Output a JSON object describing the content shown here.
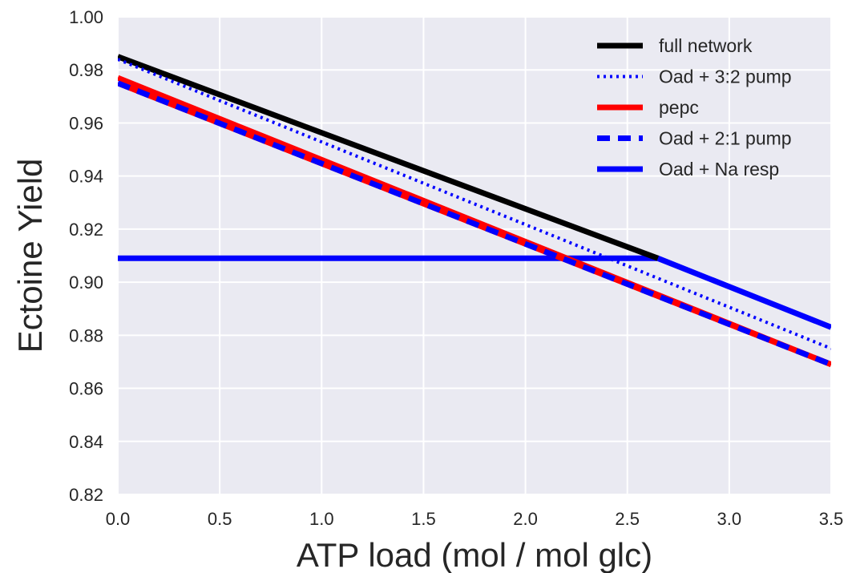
{
  "chart_data": {
    "type": "line",
    "title": "",
    "xlabel": "ATP load (mol / mol glc)",
    "ylabel": "Ectoine Yield",
    "xlim": [
      0.0,
      3.5
    ],
    "ylim": [
      0.82,
      1.0
    ],
    "xticks": [
      "0.0",
      "0.5",
      "1.0",
      "1.5",
      "2.0",
      "2.5",
      "3.0",
      "3.5"
    ],
    "yticks": [
      "0.82",
      "0.84",
      "0.86",
      "0.88",
      "0.90",
      "0.92",
      "0.94",
      "0.96",
      "0.98",
      "1.00"
    ],
    "grid": true,
    "legend_position": "top-right",
    "series": [
      {
        "name": "full network",
        "style": "solid",
        "color": "#000000",
        "x": [
          0.0,
          2.65
        ],
        "y": [
          0.985,
          0.909
        ]
      },
      {
        "name": "Oad + 3:2 pump",
        "style": "dotted",
        "color": "#0000ff",
        "x": [
          0.0,
          3.5
        ],
        "y": [
          0.984,
          0.875
        ]
      },
      {
        "name": "pepc",
        "style": "solid",
        "color": "#ff0000",
        "x": [
          0.0,
          3.5
        ],
        "y": [
          0.977,
          0.869
        ]
      },
      {
        "name": "Oad + 2:1 pump",
        "style": "dashed",
        "color": "#0000ff",
        "x": [
          0.0,
          3.5
        ],
        "y": [
          0.975,
          0.869
        ]
      },
      {
        "name": "Oad + Na resp",
        "style": "solid",
        "color": "#0000ff",
        "x": [
          0.0,
          2.65,
          3.5
        ],
        "y": [
          0.909,
          0.909,
          0.883
        ]
      }
    ]
  }
}
